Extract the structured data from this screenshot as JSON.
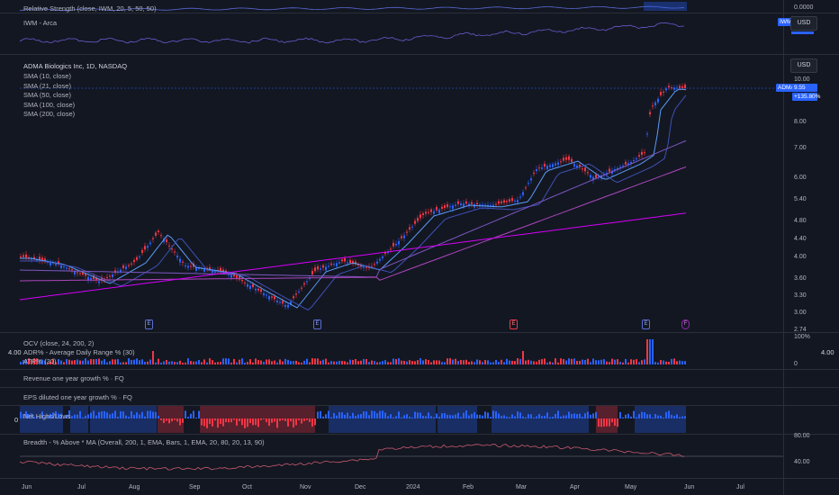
{
  "colors": {
    "bg": "#131722",
    "up": "#2962ff",
    "down": "#f23645",
    "text": "#d1d4dc"
  },
  "rs_pane": {
    "title": "Relative Strength (close, IWM, 20, 5, 50, 50)",
    "tick": "0.0000"
  },
  "iwm_pane": {
    "title": "IWM - Arca",
    "badge": "IWM",
    "currency": "USD"
  },
  "main_pane": {
    "symbol_title": "ADMA Biologics Inc, 1D, NASDAQ",
    "currency": "USD",
    "sma_labels": [
      "SMA (10, close)",
      "SMA (21, close)",
      "SMA (50, close)",
      "SMA (100, close)",
      "SMA (200, close)"
    ],
    "price_ticks": [
      "10.00",
      "8.00",
      "7.00",
      "6.00",
      "5.40",
      "4.80",
      "4.40",
      "4.00",
      "3.60",
      "3.30",
      "3.00",
      "2.74"
    ],
    "symbol_badge": "ADMA",
    "last_price": "9.55",
    "change": "+135.80%",
    "events": [
      "E",
      "E",
      "E",
      "E",
      "F"
    ]
  },
  "volume_pane": {
    "labels": [
      "OCV (close, 24, 200, 2)",
      "ADR% - Average Daily Range % (30)",
      "ATR% (30)"
    ],
    "left_value": "4.00",
    "right_value": "4.00",
    "ticks": [
      "100%",
      "0"
    ]
  },
  "revenue_pane": {
    "title": "Revenue one year growth % · FQ"
  },
  "eps_pane": {
    "title": "EPS diluted one year growth % · FQ"
  },
  "highs_lows_pane": {
    "title": "Net Highs/Lows",
    "zero_label": "0"
  },
  "breadth_pane": {
    "title": "Breadth - % Above * MA (Overall, 200, 1, EMA, Bars, 1, EMA, 20, 80, 20, 13, 90)",
    "ticks": [
      "80.00",
      "40.00"
    ]
  },
  "time_axis": {
    "labels": [
      "Jun",
      "Jul",
      "Aug",
      "Sep",
      "Oct",
      "Nov",
      "Dec",
      "2024",
      "Feb",
      "Mar",
      "Apr",
      "May",
      "Jun",
      "Jul"
    ]
  }
}
